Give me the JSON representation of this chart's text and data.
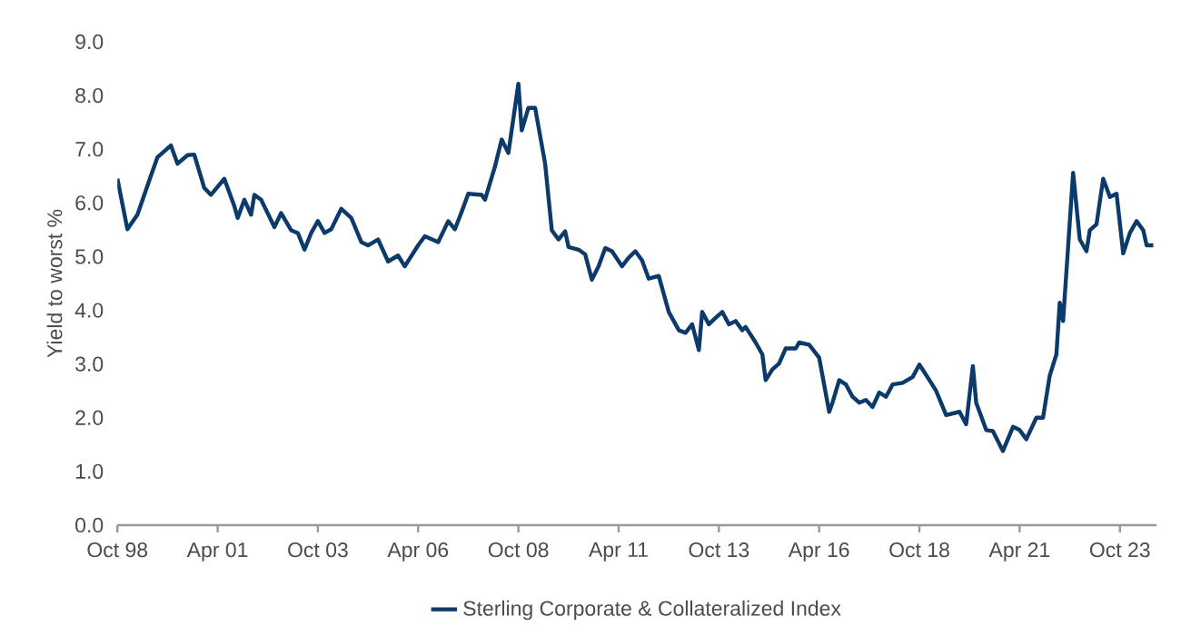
{
  "chart_data": {
    "type": "line",
    "ylabel": "Yield to worst %",
    "xlim": [
      "1998-10",
      "2024-09"
    ],
    "ylim": [
      0,
      9
    ],
    "xticks": [
      {
        "value": "1998-10",
        "label": "Oct 98"
      },
      {
        "value": "2001-04",
        "label": "Apr 01"
      },
      {
        "value": "2003-10",
        "label": "Oct 03"
      },
      {
        "value": "2006-04",
        "label": "Apr 06"
      },
      {
        "value": "2008-10",
        "label": "Oct 08"
      },
      {
        "value": "2011-04",
        "label": "Apr 11"
      },
      {
        "value": "2013-10",
        "label": "Oct 13"
      },
      {
        "value": "2016-04",
        "label": "Apr 16"
      },
      {
        "value": "2018-10",
        "label": "Oct 18"
      },
      {
        "value": "2021-04",
        "label": "Apr 21"
      },
      {
        "value": "2023-10",
        "label": "Oct 23"
      }
    ],
    "yticks": [
      {
        "value": 0,
        "label": "0.0"
      },
      {
        "value": 1,
        "label": "1.0"
      },
      {
        "value": 2,
        "label": "2.0"
      },
      {
        "value": 3,
        "label": "3.0"
      },
      {
        "value": 4,
        "label": "4.0"
      },
      {
        "value": 5,
        "label": "5.0"
      },
      {
        "value": 6,
        "label": "6.0"
      },
      {
        "value": 7,
        "label": "7.0"
      },
      {
        "value": 8,
        "label": "8.0"
      },
      {
        "value": 9,
        "label": "9.0"
      }
    ],
    "legend": "bottom",
    "series": [
      {
        "name": "Sterling Corporate & Collateralized Index",
        "color": "#0b3a6b",
        "x": [
          "1998-10",
          "1999-01",
          "1999-04",
          "1999-08",
          "1999-10",
          "2000-02",
          "2000-04",
          "2000-07",
          "2000-09",
          "2000-12",
          "2001-02",
          "2001-06",
          "2001-09",
          "2001-10",
          "2001-12",
          "2002-02",
          "2002-03",
          "2002-05",
          "2002-09",
          "2002-11",
          "2003-02",
          "2003-04",
          "2003-06",
          "2003-08",
          "2003-10",
          "2003-12",
          "2004-02",
          "2004-05",
          "2004-08",
          "2004-11",
          "2005-01",
          "2005-04",
          "2005-07",
          "2005-10",
          "2005-12",
          "2006-04",
          "2006-06",
          "2006-10",
          "2007-01",
          "2007-03",
          "2007-05",
          "2007-07",
          "2007-11",
          "2007-12",
          "2008-03",
          "2008-05",
          "2008-07",
          "2008-10",
          "2008-11",
          "2009-01",
          "2009-03",
          "2009-06",
          "2009-08",
          "2009-10",
          "2009-12",
          "2010-01",
          "2010-04",
          "2010-06",
          "2010-08",
          "2010-10",
          "2010-12",
          "2011-02",
          "2011-05",
          "2011-07",
          "2011-09",
          "2011-11",
          "2012-01",
          "2012-04",
          "2012-07",
          "2012-10",
          "2012-12",
          "2013-02",
          "2013-04",
          "2013-05",
          "2013-07",
          "2013-09",
          "2013-11",
          "2014-01",
          "2014-03",
          "2014-05",
          "2014-06",
          "2014-09",
          "2014-11",
          "2014-12",
          "2015-02",
          "2015-04",
          "2015-06",
          "2015-09",
          "2015-10",
          "2016-01",
          "2016-04",
          "2016-07",
          "2016-08",
          "2016-10",
          "2016-12",
          "2017-02",
          "2017-04",
          "2017-06",
          "2017-08",
          "2017-10",
          "2017-12",
          "2018-02",
          "2018-05",
          "2018-08",
          "2018-10",
          "2019-01",
          "2019-03",
          "2019-06",
          "2019-10",
          "2019-12",
          "2020-02",
          "2020-03",
          "2020-06",
          "2020-08",
          "2020-11",
          "2021-02",
          "2021-04",
          "2021-06",
          "2021-09",
          "2021-11",
          "2022-01",
          "2022-03",
          "2022-04",
          "2022-05",
          "2022-08",
          "2022-10",
          "2022-12",
          "2023-01",
          "2023-03",
          "2023-05",
          "2023-07",
          "2023-09",
          "2023-11",
          "2024-01",
          "2024-03",
          "2024-05",
          "2024-06",
          "2024-08"
        ],
        "values": [
          6.45,
          5.51,
          5.78,
          6.5,
          6.85,
          7.07,
          6.73,
          6.89,
          6.9,
          6.28,
          6.15,
          6.45,
          5.94,
          5.72,
          6.06,
          5.78,
          6.15,
          6.06,
          5.55,
          5.81,
          5.49,
          5.44,
          5.13,
          5.44,
          5.66,
          5.44,
          5.51,
          5.89,
          5.72,
          5.27,
          5.21,
          5.32,
          4.91,
          5.02,
          4.82,
          5.21,
          5.38,
          5.27,
          5.66,
          5.51,
          5.83,
          6.17,
          6.15,
          6.06,
          6.68,
          7.18,
          6.93,
          8.22,
          7.35,
          7.77,
          7.77,
          6.73,
          5.49,
          5.32,
          5.47,
          5.18,
          5.13,
          5.04,
          4.57,
          4.82,
          5.16,
          5.1,
          4.82,
          4.98,
          5.1,
          4.93,
          4.59,
          4.64,
          3.97,
          3.63,
          3.58,
          3.74,
          3.26,
          3.97,
          3.74,
          3.86,
          3.97,
          3.74,
          3.8,
          3.63,
          3.69,
          3.4,
          3.18,
          2.7,
          2.9,
          3.01,
          3.29,
          3.29,
          3.4,
          3.36,
          3.12,
          2.11,
          2.28,
          2.7,
          2.62,
          2.39,
          2.28,
          2.33,
          2.2,
          2.47,
          2.39,
          2.62,
          2.65,
          2.76,
          2.99,
          2.7,
          2.5,
          2.05,
          2.11,
          1.88,
          2.96,
          2.28,
          1.77,
          1.75,
          1.38,
          1.83,
          1.77,
          1.6,
          2.0,
          2.0,
          2.78,
          3.18,
          4.14,
          3.8,
          6.56,
          5.32,
          5.1,
          5.49,
          5.6,
          6.45,
          6.11,
          6.17,
          5.06,
          5.44,
          5.66,
          5.49,
          5.21,
          5.21
        ]
      }
    ]
  }
}
